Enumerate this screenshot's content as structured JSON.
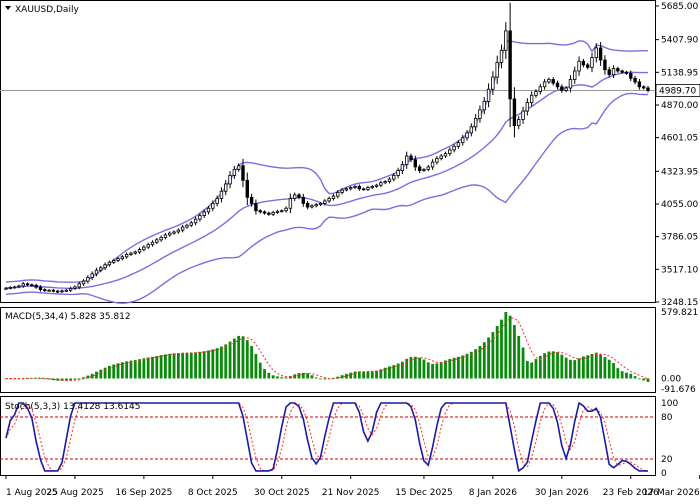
{
  "window": {
    "symbol_label": "XAUUSD,Daily",
    "dropdown_icon": "triangle-down-icon"
  },
  "colors": {
    "band": "#7b6fe0",
    "candle": "#000000",
    "macd_hist": "#0a8a0a",
    "macd_signal": "#ff2a2a",
    "stoch_main": "#1a1aa8",
    "stoch_signal": "#ff2a2a",
    "level_line": "#cc0000",
    "price_line": "#9a9a9a"
  },
  "chart_data": [
    {
      "type": "candlestick",
      "title": "XAUUSD,Daily",
      "indicator": "Bollinger Bands",
      "y_ticks": [
        "5685.00",
        "5407.90",
        "5138.95",
        "4870.00",
        "4601.05",
        "4323.95",
        "4055.00",
        "3786.05",
        "3517.10",
        "3248.15"
      ],
      "ylim": [
        3248.15,
        5685.0
      ],
      "current_price": "4989.70",
      "x_ticks": [
        "1 Aug 2025",
        "25 Aug 2025",
        "16 Sep 2025",
        "8 Oct 2025",
        "30 Oct 2025",
        "21 Nov 2025",
        "15 Dec 2025",
        "8 Jan 2026",
        "30 Jan 2026",
        "23 Feb 2026",
        "17 Mar 2026"
      ],
      "x_tick_index": [
        0,
        16,
        32,
        48,
        64,
        80,
        97,
        113,
        129,
        145,
        161
      ],
      "close": [
        3362,
        3368,
        3372,
        3380,
        3398,
        3390,
        3385,
        3370,
        3350,
        3342,
        3345,
        3338,
        3332,
        3340,
        3345,
        3360,
        3372,
        3398,
        3420,
        3450,
        3480,
        3510,
        3530,
        3555,
        3575,
        3590,
        3605,
        3620,
        3640,
        3650,
        3660,
        3680,
        3700,
        3720,
        3740,
        3760,
        3780,
        3800,
        3815,
        3825,
        3840,
        3865,
        3880,
        3900,
        3930,
        3960,
        3990,
        4020,
        4060,
        4100,
        4160,
        4220,
        4290,
        4340,
        4370,
        4250,
        4110,
        4060,
        4000,
        3990,
        3980,
        3970,
        3985,
        3995,
        4000,
        4020,
        4100,
        4130,
        4110,
        4060,
        4030,
        4040,
        4050,
        4060,
        4080,
        4100,
        4120,
        4150,
        4170,
        4180,
        4190,
        4200,
        4180,
        4175,
        4190,
        4200,
        4210,
        4230,
        4240,
        4260,
        4290,
        4330,
        4380,
        4450,
        4420,
        4360,
        4330,
        4340,
        4360,
        4400,
        4430,
        4450,
        4470,
        4500,
        4530,
        4560,
        4600,
        4640,
        4690,
        4760,
        4830,
        4900,
        5000,
        5100,
        5220,
        5320,
        5480,
        4920,
        4700,
        4750,
        4820,
        4890,
        4950,
        4980,
        5020,
        5060,
        5080,
        5050,
        5020,
        4990,
        5010,
        5080,
        5150,
        5230,
        5200,
        5180,
        5260,
        5340,
        5240,
        5160,
        5120,
        5170,
        5150,
        5140,
        5130,
        5090,
        5060,
        5020,
        5010,
        4989.7
      ],
      "macd_label": "MACD(5,34,4) 5.828 35.812",
      "macd_ticks": [
        "579.821",
        "0.00",
        "-91.676"
      ],
      "macd_ylim": [
        -91.676,
        579.821
      ],
      "stoch_label": "Stoch(5,3,3) 13.4128 13.6145",
      "stoch_ticks": [
        "100",
        "80",
        "20",
        "0"
      ],
      "stoch_levels": [
        80,
        20
      ],
      "stoch_ylim": [
        0,
        100
      ]
    }
  ]
}
